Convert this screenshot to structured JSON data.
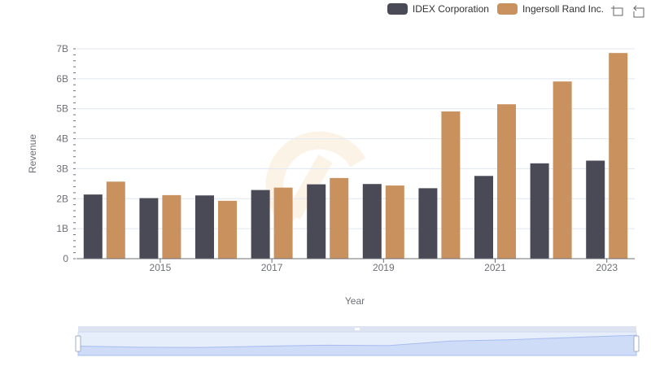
{
  "chart_data": {
    "type": "bar",
    "title": "",
    "xlabel": "Year",
    "ylabel": "Revenue",
    "categories": [
      "2014",
      "2015",
      "2016",
      "2017",
      "2018",
      "2019",
      "2020",
      "2021",
      "2022",
      "2023"
    ],
    "x_tick_labels": [
      "2015",
      "2017",
      "2019",
      "2021",
      "2023"
    ],
    "y_tick_labels": [
      "0",
      "1B",
      "2B",
      "3B",
      "4B",
      "5B",
      "6B",
      "7B"
    ],
    "ylim": [
      0,
      7000000000
    ],
    "grid": true,
    "legend_position": "top-right",
    "series": [
      {
        "name": "IDEX Corporation",
        "color": "#4a4a56",
        "values": [
          2140000000,
          2020000000,
          2110000000,
          2290000000,
          2480000000,
          2490000000,
          2350000000,
          2760000000,
          3180000000,
          3270000000
        ]
      },
      {
        "name": "Ingersoll Rand Inc.",
        "color": "#c9915e",
        "values": [
          2570000000,
          2120000000,
          1930000000,
          2370000000,
          2690000000,
          2440000000,
          4910000000,
          5150000000,
          5910000000,
          6860000000
        ]
      }
    ]
  },
  "legend": {
    "items": [
      {
        "label": "IDEX Corporation",
        "color": "#4a4a56"
      },
      {
        "label": "Ingersoll Rand Inc.",
        "color": "#c9915e"
      }
    ]
  },
  "toolbar": {
    "icons": [
      "zoom-select-icon",
      "zoom-reset-icon"
    ]
  },
  "datazoom": {
    "start_percent": 0,
    "end_percent": 100
  }
}
